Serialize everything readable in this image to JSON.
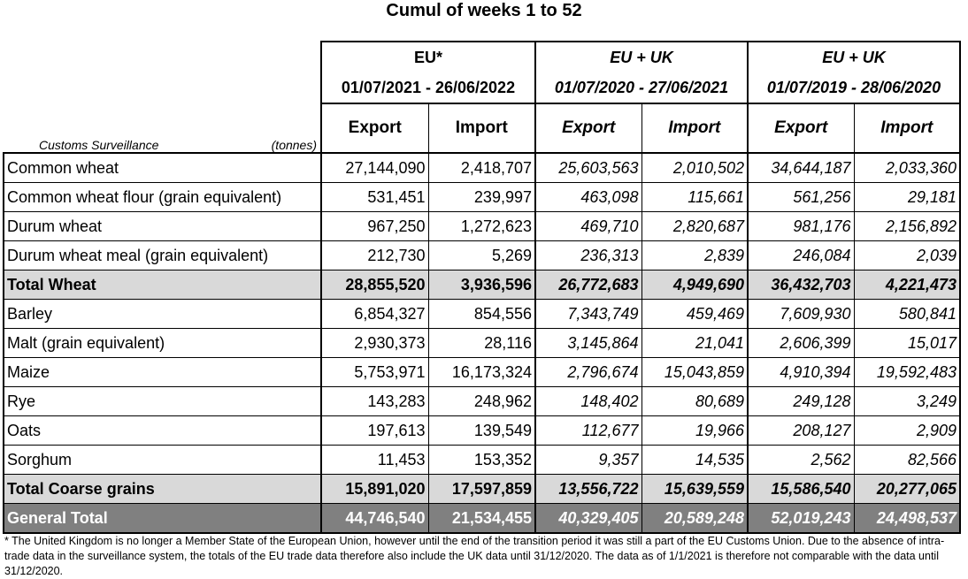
{
  "title": "Cumul of weeks 1 to 52",
  "header": {
    "row_label": "Customs Surveillance",
    "unit": "(tonnes)",
    "groups": [
      {
        "name": "EU*",
        "period": "01/07/2021 - 26/06/2022"
      },
      {
        "name": "EU + UK",
        "period": "01/07/2020 - 27/06/2021"
      },
      {
        "name": "EU + UK",
        "period": "01/07/2019 - 28/06/2020"
      }
    ],
    "sub": [
      "Export",
      "Import",
      "Export",
      "Import",
      "Export",
      "Import"
    ]
  },
  "rows": [
    {
      "label": "Common wheat",
      "values": [
        "27,144,090",
        "2,418,707",
        "25,603,563",
        "2,010,502",
        "34,644,187",
        "2,033,360"
      ]
    },
    {
      "label": "Common wheat flour (grain equivalent)",
      "values": [
        "531,451",
        "239,997",
        "463,098",
        "115,661",
        "561,256",
        "29,181"
      ]
    },
    {
      "label": "Durum wheat",
      "values": [
        "967,250",
        "1,272,623",
        "469,710",
        "2,820,687",
        "981,176",
        "2,156,892"
      ]
    },
    {
      "label": "Durum wheat meal (grain equivalent)",
      "values": [
        "212,730",
        "5,269",
        "236,313",
        "2,839",
        "246,084",
        "2,039"
      ]
    },
    {
      "label": "Total Wheat",
      "values": [
        "28,855,520",
        "3,936,596",
        "26,772,683",
        "4,949,690",
        "36,432,703",
        "4,221,473"
      ]
    },
    {
      "label": "Barley",
      "values": [
        "6,854,327",
        "854,556",
        "7,343,749",
        "459,469",
        "7,609,930",
        "580,841"
      ]
    },
    {
      "label": "Malt (grain equivalent)",
      "values": [
        "2,930,373",
        "28,116",
        "3,145,864",
        "21,041",
        "2,606,399",
        "15,017"
      ]
    },
    {
      "label": "Maize",
      "values": [
        "5,753,971",
        "16,173,324",
        "2,796,674",
        "15,043,859",
        "4,910,394",
        "19,592,483"
      ]
    },
    {
      "label": "Rye",
      "values": [
        "143,283",
        "248,962",
        "148,402",
        "80,689",
        "249,128",
        "3,249"
      ]
    },
    {
      "label": "Oats",
      "values": [
        "197,613",
        "139,549",
        "112,677",
        "19,966",
        "208,127",
        "2,909"
      ]
    },
    {
      "label": "Sorghum",
      "values": [
        "11,453",
        "153,352",
        "9,357",
        "14,535",
        "2,562",
        "82,566"
      ]
    },
    {
      "label": "Total Coarse grains",
      "values": [
        "15,891,020",
        "17,597,859",
        "13,556,722",
        "15,639,559",
        "15,586,540",
        "20,277,065"
      ]
    },
    {
      "label": "General Total",
      "values": [
        "44,746,540",
        "21,534,455",
        "40,329,405",
        "20,589,248",
        "52,019,243",
        "24,498,537"
      ]
    }
  ],
  "footnote": "* The United Kingdom is no longer a Member State of the European Union, however until the end of the transition period it was still a part of the EU Customs Union. Due to the absence of intra-trade data in the surveillance system, the totals of the EU trade data  therefore also include the UK data until 31/12/2020. The data as of 1/1/2021 is therefore not comparable with the data until 31/12/2020."
}
